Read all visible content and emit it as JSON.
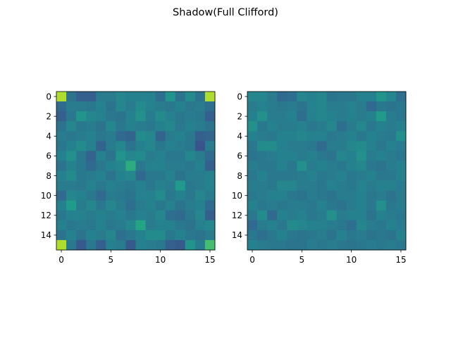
{
  "chart_data": {
    "type": "heatmap",
    "title": "Shadow(Full Clifford)",
    "panels": [
      {
        "name": "",
        "xticks": [
          0,
          5,
          10,
          15
        ],
        "yticks": [
          0,
          2,
          4,
          6,
          8,
          10,
          12,
          14
        ],
        "values": [
          [
            0.88,
            0.38,
            0.3,
            0.3,
            0.42,
            0.42,
            0.46,
            0.44,
            0.44,
            0.44,
            0.36,
            0.52,
            0.38,
            0.48,
            0.38,
            0.88
          ],
          [
            0.34,
            0.42,
            0.42,
            0.4,
            0.44,
            0.38,
            0.46,
            0.42,
            0.48,
            0.44,
            0.42,
            0.4,
            0.44,
            0.4,
            0.42,
            0.36
          ],
          [
            0.3,
            0.4,
            0.52,
            0.46,
            0.44,
            0.4,
            0.38,
            0.44,
            0.5,
            0.42,
            0.48,
            0.44,
            0.4,
            0.42,
            0.4,
            0.3
          ],
          [
            0.38,
            0.46,
            0.4,
            0.42,
            0.38,
            0.46,
            0.4,
            0.44,
            0.42,
            0.4,
            0.44,
            0.46,
            0.4,
            0.44,
            0.42,
            0.38
          ],
          [
            0.42,
            0.4,
            0.42,
            0.44,
            0.4,
            0.42,
            0.34,
            0.32,
            0.48,
            0.46,
            0.32,
            0.42,
            0.44,
            0.4,
            0.3,
            0.32
          ],
          [
            0.4,
            0.44,
            0.48,
            0.44,
            0.32,
            0.42,
            0.46,
            0.38,
            0.44,
            0.46,
            0.4,
            0.44,
            0.42,
            0.4,
            0.26,
            0.42
          ],
          [
            0.44,
            0.5,
            0.4,
            0.32,
            0.44,
            0.38,
            0.52,
            0.46,
            0.48,
            0.42,
            0.44,
            0.4,
            0.4,
            0.46,
            0.42,
            0.34
          ],
          [
            0.38,
            0.44,
            0.4,
            0.34,
            0.4,
            0.44,
            0.46,
            0.62,
            0.4,
            0.44,
            0.44,
            0.42,
            0.42,
            0.4,
            0.44,
            0.3
          ],
          [
            0.44,
            0.48,
            0.4,
            0.42,
            0.44,
            0.38,
            0.44,
            0.46,
            0.34,
            0.4,
            0.4,
            0.44,
            0.38,
            0.42,
            0.42,
            0.44
          ],
          [
            0.42,
            0.42,
            0.4,
            0.44,
            0.4,
            0.44,
            0.42,
            0.4,
            0.44,
            0.4,
            0.44,
            0.42,
            0.54,
            0.4,
            0.42,
            0.44
          ],
          [
            0.34,
            0.46,
            0.44,
            0.4,
            0.34,
            0.42,
            0.4,
            0.38,
            0.44,
            0.44,
            0.48,
            0.4,
            0.44,
            0.4,
            0.46,
            0.42
          ],
          [
            0.44,
            0.54,
            0.42,
            0.46,
            0.4,
            0.46,
            0.42,
            0.36,
            0.42,
            0.44,
            0.4,
            0.44,
            0.38,
            0.42,
            0.44,
            0.34
          ],
          [
            0.4,
            0.44,
            0.44,
            0.42,
            0.44,
            0.42,
            0.44,
            0.4,
            0.44,
            0.42,
            0.46,
            0.36,
            0.34,
            0.4,
            0.46,
            0.3
          ],
          [
            0.44,
            0.4,
            0.42,
            0.4,
            0.44,
            0.4,
            0.42,
            0.46,
            0.58,
            0.42,
            0.44,
            0.44,
            0.4,
            0.38,
            0.44,
            0.46
          ],
          [
            0.38,
            0.44,
            0.38,
            0.44,
            0.42,
            0.46,
            0.36,
            0.4,
            0.44,
            0.48,
            0.48,
            0.4,
            0.44,
            0.4,
            0.38,
            0.42
          ],
          [
            0.88,
            0.4,
            0.28,
            0.4,
            0.3,
            0.44,
            0.42,
            0.28,
            0.44,
            0.42,
            0.4,
            0.3,
            0.28,
            0.52,
            0.42,
            0.7
          ]
        ]
      },
      {
        "name": "",
        "xticks": [
          0,
          5,
          10,
          15
        ],
        "yticks": [
          0,
          2,
          4,
          6,
          8,
          10,
          12,
          14
        ],
        "values": [
          [
            0.46,
            0.46,
            0.42,
            0.34,
            0.36,
            0.46,
            0.44,
            0.46,
            0.38,
            0.4,
            0.4,
            0.44,
            0.44,
            0.52,
            0.46,
            0.36
          ],
          [
            0.42,
            0.44,
            0.42,
            0.4,
            0.42,
            0.38,
            0.44,
            0.46,
            0.42,
            0.42,
            0.44,
            0.42,
            0.34,
            0.4,
            0.38,
            0.4
          ],
          [
            0.44,
            0.5,
            0.42,
            0.42,
            0.44,
            0.36,
            0.44,
            0.46,
            0.44,
            0.42,
            0.44,
            0.42,
            0.44,
            0.54,
            0.42,
            0.4
          ],
          [
            0.5,
            0.4,
            0.44,
            0.42,
            0.42,
            0.44,
            0.4,
            0.42,
            0.46,
            0.36,
            0.42,
            0.46,
            0.4,
            0.44,
            0.42,
            0.44
          ],
          [
            0.44,
            0.42,
            0.4,
            0.44,
            0.44,
            0.46,
            0.44,
            0.44,
            0.4,
            0.42,
            0.44,
            0.4,
            0.44,
            0.42,
            0.4,
            0.5
          ],
          [
            0.4,
            0.48,
            0.48,
            0.44,
            0.42,
            0.42,
            0.4,
            0.34,
            0.42,
            0.42,
            0.46,
            0.48,
            0.44,
            0.4,
            0.44,
            0.42
          ],
          [
            0.38,
            0.4,
            0.42,
            0.44,
            0.44,
            0.42,
            0.44,
            0.4,
            0.38,
            0.46,
            0.44,
            0.5,
            0.42,
            0.44,
            0.42,
            0.4
          ],
          [
            0.42,
            0.4,
            0.4,
            0.44,
            0.4,
            0.5,
            0.42,
            0.44,
            0.42,
            0.4,
            0.44,
            0.46,
            0.4,
            0.38,
            0.42,
            0.44
          ],
          [
            0.4,
            0.44,
            0.4,
            0.4,
            0.4,
            0.42,
            0.44,
            0.4,
            0.42,
            0.44,
            0.4,
            0.42,
            0.44,
            0.4,
            0.4,
            0.44
          ],
          [
            0.42,
            0.42,
            0.4,
            0.46,
            0.46,
            0.42,
            0.42,
            0.4,
            0.44,
            0.42,
            0.4,
            0.44,
            0.42,
            0.44,
            0.44,
            0.42
          ],
          [
            0.4,
            0.42,
            0.44,
            0.44,
            0.4,
            0.38,
            0.42,
            0.4,
            0.38,
            0.42,
            0.42,
            0.44,
            0.4,
            0.42,
            0.38,
            0.42
          ],
          [
            0.44,
            0.4,
            0.42,
            0.4,
            0.42,
            0.42,
            0.4,
            0.44,
            0.4,
            0.38,
            0.42,
            0.44,
            0.4,
            0.5,
            0.4,
            0.42
          ],
          [
            0.4,
            0.48,
            0.34,
            0.44,
            0.42,
            0.44,
            0.4,
            0.42,
            0.5,
            0.42,
            0.44,
            0.44,
            0.38,
            0.44,
            0.42,
            0.4
          ],
          [
            0.34,
            0.42,
            0.44,
            0.4,
            0.48,
            0.46,
            0.44,
            0.44,
            0.42,
            0.4,
            0.36,
            0.46,
            0.42,
            0.4,
            0.44,
            0.42
          ],
          [
            0.4,
            0.36,
            0.4,
            0.44,
            0.4,
            0.38,
            0.4,
            0.42,
            0.38,
            0.44,
            0.4,
            0.42,
            0.38,
            0.4,
            0.38,
            0.44
          ],
          [
            0.44,
            0.42,
            0.4,
            0.4,
            0.38,
            0.38,
            0.42,
            0.4,
            0.42,
            0.4,
            0.38,
            0.4,
            0.42,
            0.4,
            0.42,
            0.4
          ]
        ]
      }
    ],
    "colormap": "viridis",
    "vrange": [
      0,
      1
    ]
  }
}
